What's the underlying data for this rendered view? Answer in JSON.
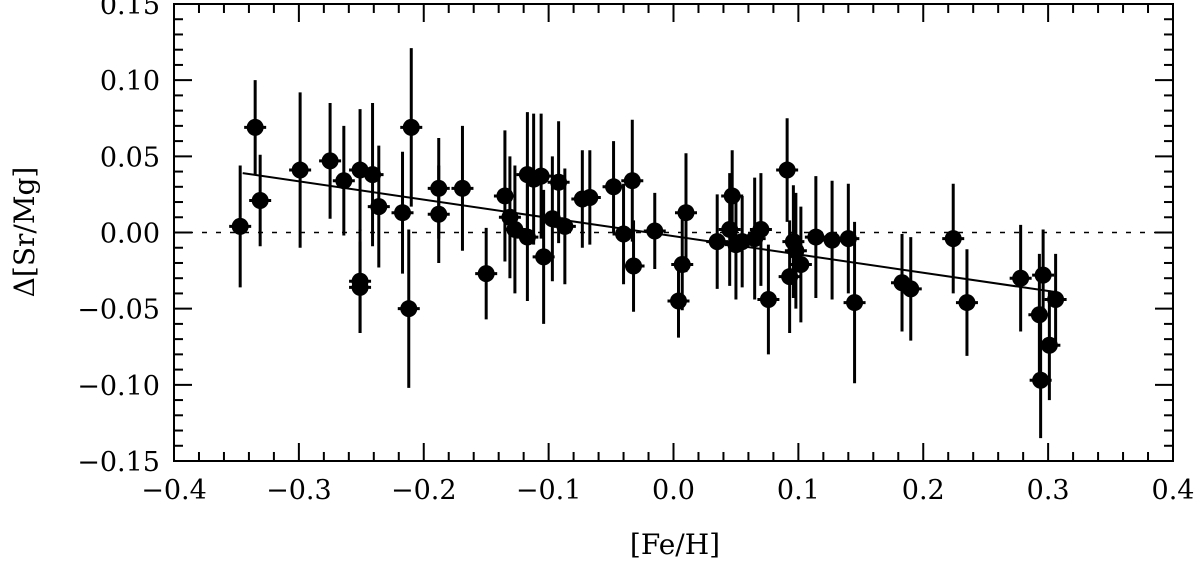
{
  "chart_data": {
    "type": "scatter",
    "xlabel": "[Fe/H]",
    "ylabel": "Δ[Sr/Mg]",
    "xlim": [
      -0.4,
      0.4
    ],
    "ylim": [
      -0.15,
      0.15
    ],
    "x_ticks": [
      -0.4,
      -0.3,
      -0.2,
      -0.1,
      0.0,
      0.1,
      0.2,
      0.3,
      0.4
    ],
    "x_tick_labels": [
      "−0.4",
      "−0.3",
      "−0.2",
      "−0.1",
      "0.0",
      "0.1",
      "0.2",
      "0.3",
      "0.4"
    ],
    "y_ticks": [
      -0.15,
      -0.1,
      -0.05,
      0.0,
      0.05,
      0.1,
      0.15
    ],
    "y_tick_labels": [
      "−0.15",
      "−0.10",
      "−0.05",
      "0.00",
      "0.05",
      "0.10",
      "0.15"
    ],
    "grid": false,
    "reference_line": {
      "y": 0.0,
      "style": "dotted"
    },
    "fit_line": {
      "x": [
        -0.345,
        0.305
      ],
      "y": [
        0.039,
        -0.039
      ]
    },
    "points": [
      {
        "x": -0.347,
        "y": 0.004,
        "yerr": 0.04
      },
      {
        "x": -0.335,
        "y": 0.069,
        "yerr": 0.031
      },
      {
        "x": -0.331,
        "y": 0.021,
        "yerr": 0.03
      },
      {
        "x": -0.299,
        "y": 0.041,
        "yerr": 0.051
      },
      {
        "x": -0.275,
        "y": 0.047,
        "yerr": 0.038
      },
      {
        "x": -0.264,
        "y": 0.034,
        "yerr": 0.036
      },
      {
        "x": -0.251,
        "y": 0.041,
        "yerr": 0.04
      },
      {
        "x": -0.241,
        "y": 0.038,
        "yerr": 0.047
      },
      {
        "x": -0.236,
        "y": 0.017,
        "yerr": 0.04
      },
      {
        "x": -0.251,
        "y": -0.032,
        "yerr": 0.034
      },
      {
        "x": -0.251,
        "y": -0.036,
        "yerr": 0.03
      },
      {
        "x": -0.217,
        "y": 0.013,
        "yerr": 0.04
      },
      {
        "x": -0.21,
        "y": 0.069,
        "yerr": 0.052
      },
      {
        "x": -0.212,
        "y": -0.05,
        "yerr": 0.052
      },
      {
        "x": -0.188,
        "y": 0.029,
        "yerr": 0.033
      },
      {
        "x": -0.188,
        "y": 0.012,
        "yerr": 0.032
      },
      {
        "x": -0.169,
        "y": 0.029,
        "yerr": 0.041
      },
      {
        "x": -0.15,
        "y": -0.027,
        "yerr": 0.03
      },
      {
        "x": -0.135,
        "y": 0.024,
        "yerr": 0.043
      },
      {
        "x": -0.131,
        "y": 0.01,
        "yerr": 0.04
      },
      {
        "x": -0.127,
        "y": 0.002,
        "yerr": 0.042
      },
      {
        "x": -0.117,
        "y": 0.038,
        "yerr": 0.041
      },
      {
        "x": -0.112,
        "y": 0.035,
        "yerr": 0.043
      },
      {
        "x": -0.106,
        "y": 0.037,
        "yerr": 0.041
      },
      {
        "x": -0.117,
        "y": -0.003,
        "yerr": 0.042
      },
      {
        "x": -0.104,
        "y": -0.016,
        "yerr": 0.044
      },
      {
        "x": -0.097,
        "y": 0.009,
        "yerr": 0.041
      },
      {
        "x": -0.092,
        "y": 0.033,
        "yerr": 0.04
      },
      {
        "x": -0.087,
        "y": 0.004,
        "yerr": 0.038
      },
      {
        "x": -0.073,
        "y": 0.022,
        "yerr": 0.032
      },
      {
        "x": -0.067,
        "y": 0.023,
        "yerr": 0.031
      },
      {
        "x": -0.048,
        "y": 0.03,
        "yerr": 0.03
      },
      {
        "x": -0.04,
        "y": -0.001,
        "yerr": 0.033
      },
      {
        "x": -0.033,
        "y": 0.034,
        "yerr": 0.04
      },
      {
        "x": -0.032,
        "y": -0.022,
        "yerr": 0.03
      },
      {
        "x": -0.015,
        "y": 0.001,
        "yerr": 0.025
      },
      {
        "x": 0.004,
        "y": -0.045,
        "yerr": 0.024
      },
      {
        "x": 0.007,
        "y": -0.021,
        "yerr": 0.03
      },
      {
        "x": 0.01,
        "y": 0.013,
        "yerr": 0.039
      },
      {
        "x": 0.035,
        "y": -0.006,
        "yerr": 0.031
      },
      {
        "x": 0.045,
        "y": 0.002,
        "yerr": 0.037
      },
      {
        "x": 0.047,
        "y": 0.024,
        "yerr": 0.03
      },
      {
        "x": 0.05,
        "y": -0.008,
        "yerr": 0.036
      },
      {
        "x": 0.055,
        "y": -0.006,
        "yerr": 0.03
      },
      {
        "x": 0.065,
        "y": -0.004,
        "yerr": 0.04
      },
      {
        "x": 0.07,
        "y": 0.002,
        "yerr": 0.037
      },
      {
        "x": 0.076,
        "y": -0.044,
        "yerr": 0.036
      },
      {
        "x": 0.091,
        "y": 0.041,
        "yerr": 0.034
      },
      {
        "x": 0.093,
        "y": -0.029,
        "yerr": 0.037
      },
      {
        "x": 0.096,
        "y": -0.006,
        "yerr": 0.037
      },
      {
        "x": 0.098,
        "y": -0.012,
        "yerr": 0.038
      },
      {
        "x": 0.102,
        "y": -0.021,
        "yerr": 0.038
      },
      {
        "x": 0.114,
        "y": -0.003,
        "yerr": 0.04
      },
      {
        "x": 0.127,
        "y": -0.005,
        "yerr": 0.039
      },
      {
        "x": 0.14,
        "y": -0.004,
        "yerr": 0.036
      },
      {
        "x": 0.145,
        "y": -0.046,
        "yerr": 0.053
      },
      {
        "x": 0.183,
        "y": -0.033,
        "yerr": 0.032
      },
      {
        "x": 0.19,
        "y": -0.037,
        "yerr": 0.034
      },
      {
        "x": 0.224,
        "y": -0.004,
        "yerr": 0.036
      },
      {
        "x": 0.235,
        "y": -0.046,
        "yerr": 0.035
      },
      {
        "x": 0.278,
        "y": -0.03,
        "yerr": 0.035
      },
      {
        "x": 0.293,
        "y": -0.054,
        "yerr": 0.04
      },
      {
        "x": 0.296,
        "y": -0.028,
        "yerr": 0.03
      },
      {
        "x": 0.294,
        "y": -0.097,
        "yerr": 0.038
      },
      {
        "x": 0.301,
        "y": -0.074,
        "yerr": 0.036
      },
      {
        "x": 0.306,
        "y": -0.044,
        "yerr": 0.03
      }
    ]
  }
}
